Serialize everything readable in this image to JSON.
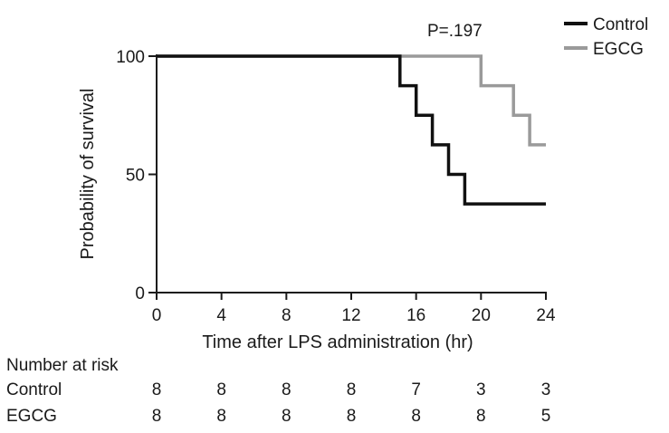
{
  "chart_data": {
    "type": "line",
    "xlabel": "Time after LPS administration (hr)",
    "ylabel": "Probability of survival",
    "annotation": "P=.197",
    "xlim": [
      0,
      24
    ],
    "ylim": [
      0,
      100
    ],
    "x_ticks": [
      0,
      4,
      8,
      12,
      16,
      20,
      24
    ],
    "y_ticks": [
      0,
      50,
      100
    ],
    "grid": false,
    "legend_position": "top-right",
    "step": true,
    "series": [
      {
        "name": "Control",
        "color": "#111111",
        "points": [
          [
            0,
            100
          ],
          [
            15,
            100
          ],
          [
            15,
            87.5
          ],
          [
            16,
            87.5
          ],
          [
            16,
            75
          ],
          [
            17,
            75
          ],
          [
            17,
            62.5
          ],
          [
            18,
            62.5
          ],
          [
            18,
            50
          ],
          [
            19,
            50
          ],
          [
            19,
            37.5
          ],
          [
            24,
            37.5
          ]
        ]
      },
      {
        "name": "EGCG",
        "color": "#9a9a9a",
        "points": [
          [
            0,
            100
          ],
          [
            20,
            100
          ],
          [
            20,
            87.5
          ],
          [
            22,
            87.5
          ],
          [
            22,
            75
          ],
          [
            23,
            75
          ],
          [
            23,
            62.5
          ],
          [
            24,
            62.5
          ]
        ]
      }
    ],
    "risk_table": {
      "title": "Number at risk",
      "times": [
        0,
        4,
        8,
        12,
        16,
        20,
        24
      ],
      "rows": [
        {
          "label": "Control",
          "values": [
            8,
            8,
            8,
            8,
            7,
            3,
            3
          ]
        },
        {
          "label": "EGCG",
          "values": [
            8,
            8,
            8,
            8,
            8,
            8,
            5
          ]
        }
      ]
    }
  }
}
